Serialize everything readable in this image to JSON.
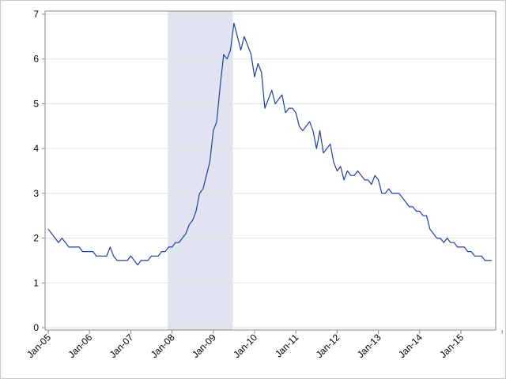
{
  "chart_data": {
    "type": "line",
    "title": "",
    "xlabel": "",
    "ylabel": "",
    "ylim": [
      0,
      7
    ],
    "y_ticks": [
      "0",
      "1",
      "2",
      "3",
      "4",
      "5",
      "6",
      "7"
    ],
    "x_ticks": [
      "Jan-05",
      "Jan-06",
      "Jan-07",
      "Jan-08",
      "Jan-09",
      "Jan-10",
      "Jan-11",
      "Jan-12",
      "Jan-13",
      "Jan-14",
      "Jan-15"
    ],
    "x_start": "2005-01",
    "x_frequency": "monthly",
    "grid": "horizontal",
    "shaded_region": {
      "start": "2007-12",
      "end": "2009-06",
      "color": "#e1e4f0"
    },
    "line_color": "#1f3f9f",
    "series": [
      {
        "values": [
          2.2,
          2.1,
          2.0,
          1.9,
          2.0,
          1.9,
          1.8,
          1.8,
          1.8,
          1.8,
          1.7,
          1.7,
          1.7,
          1.7,
          1.6,
          1.6,
          1.6,
          1.6,
          1.8,
          1.6,
          1.5,
          1.5,
          1.5,
          1.5,
          1.6,
          1.5,
          1.4,
          1.5,
          1.5,
          1.5,
          1.6,
          1.6,
          1.6,
          1.7,
          1.7,
          1.8,
          1.8,
          1.9,
          1.9,
          2.0,
          2.1,
          2.3,
          2.4,
          2.6,
          3.0,
          3.1,
          3.4,
          3.7,
          4.4,
          4.6,
          5.4,
          6.1,
          6.0,
          6.2,
          6.8,
          6.5,
          6.2,
          6.5,
          6.3,
          6.1,
          5.6,
          5.9,
          5.7,
          4.9,
          5.1,
          5.3,
          5.0,
          5.1,
          5.2,
          4.8,
          4.9,
          4.9,
          4.8,
          4.5,
          4.4,
          4.5,
          4.6,
          4.4,
          4.0,
          4.4,
          3.9,
          4.0,
          4.1,
          3.7,
          3.5,
          3.6,
          3.3,
          3.5,
          3.4,
          3.4,
          3.5,
          3.4,
          3.3,
          3.3,
          3.2,
          3.4,
          3.3,
          3.0,
          3.0,
          3.1,
          3.0,
          3.0,
          3.0,
          2.9,
          2.8,
          2.7,
          2.7,
          2.6,
          2.6,
          2.5,
          2.5,
          2.2,
          2.1,
          2.0,
          2.0,
          1.9,
          2.0,
          1.9,
          1.9,
          1.8,
          1.8,
          1.8,
          1.7,
          1.7,
          1.6,
          1.6,
          1.6,
          1.5,
          1.5,
          1.5
        ]
      }
    ]
  }
}
